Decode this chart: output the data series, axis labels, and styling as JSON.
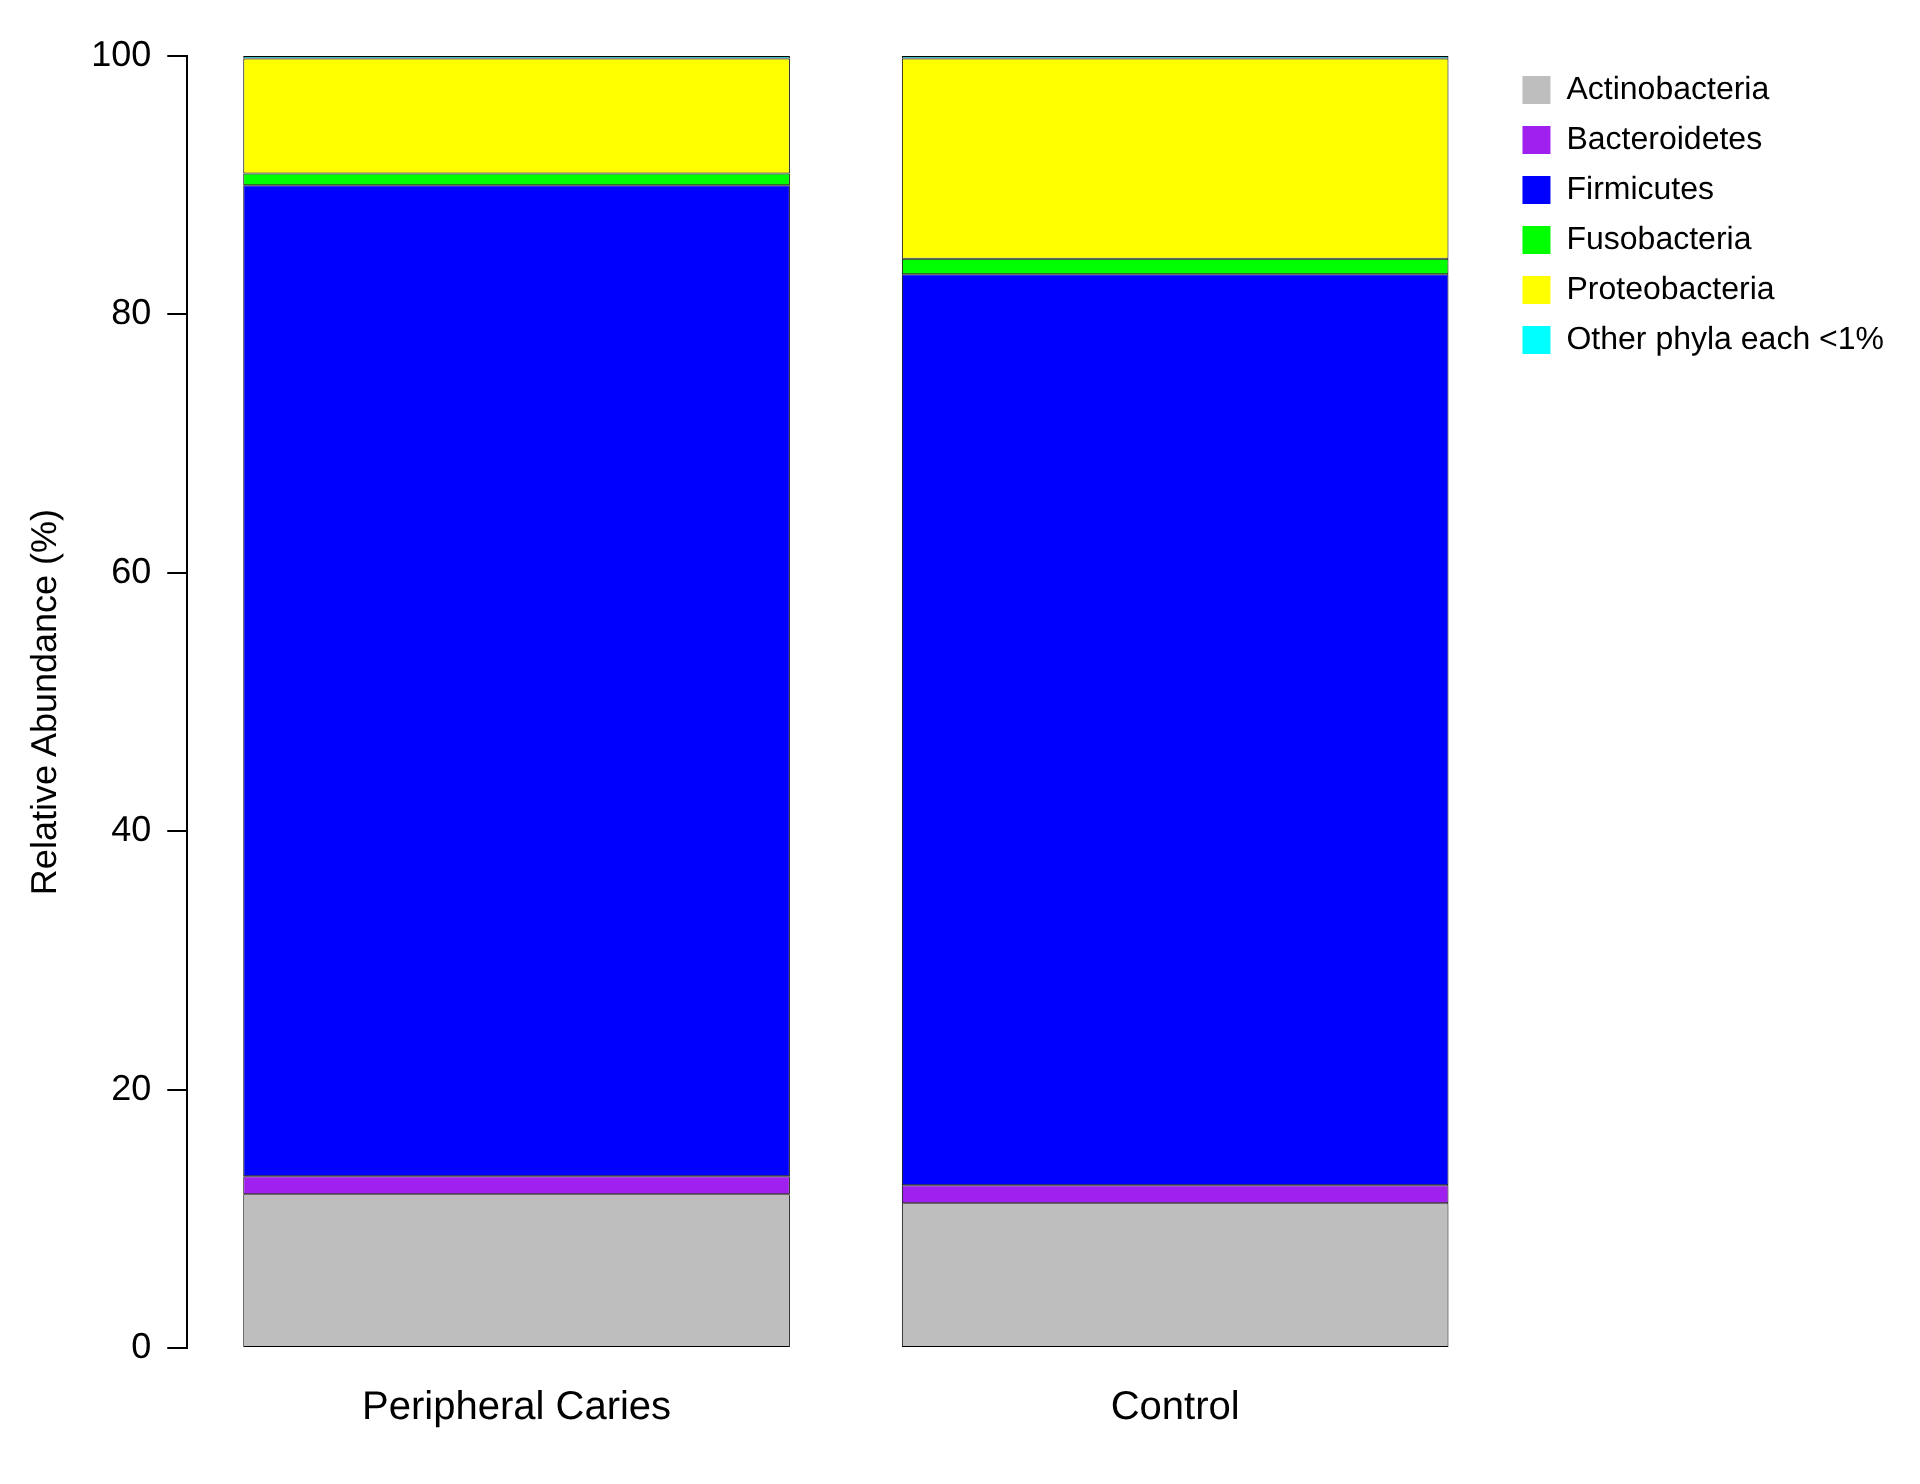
{
  "chart_data": {
    "type": "bar",
    "stacked": true,
    "ylabel": "Relative Abundance (%)",
    "categories": [
      "Peripheral Caries",
      "Control"
    ],
    "ylim": [
      0,
      100
    ],
    "yticks": [
      0,
      20,
      40,
      60,
      80,
      100
    ],
    "grid": false,
    "legend": "top right",
    "series": [
      {
        "name": "Actinobacteria",
        "color": "#bebebe",
        "values": [
          11.9,
          11.2
        ]
      },
      {
        "name": "Bacteroidetes",
        "color": "#a020f0",
        "values": [
          1.4,
          1.4
        ]
      },
      {
        "name": "Firmicutes",
        "color": "#0000ff",
        "values": [
          76.7,
          70.5
        ]
      },
      {
        "name": "Fusobacteria",
        "color": "#00ff00",
        "values": [
          0.9,
          1.2
        ]
      },
      {
        "name": "Proteobacteria",
        "color": "#ffff00",
        "values": [
          8.9,
          15.5
        ]
      },
      {
        "name": "Other phyla each <1%",
        "color": "#00ffff",
        "values": [
          0.2,
          0.2
        ]
      }
    ]
  }
}
